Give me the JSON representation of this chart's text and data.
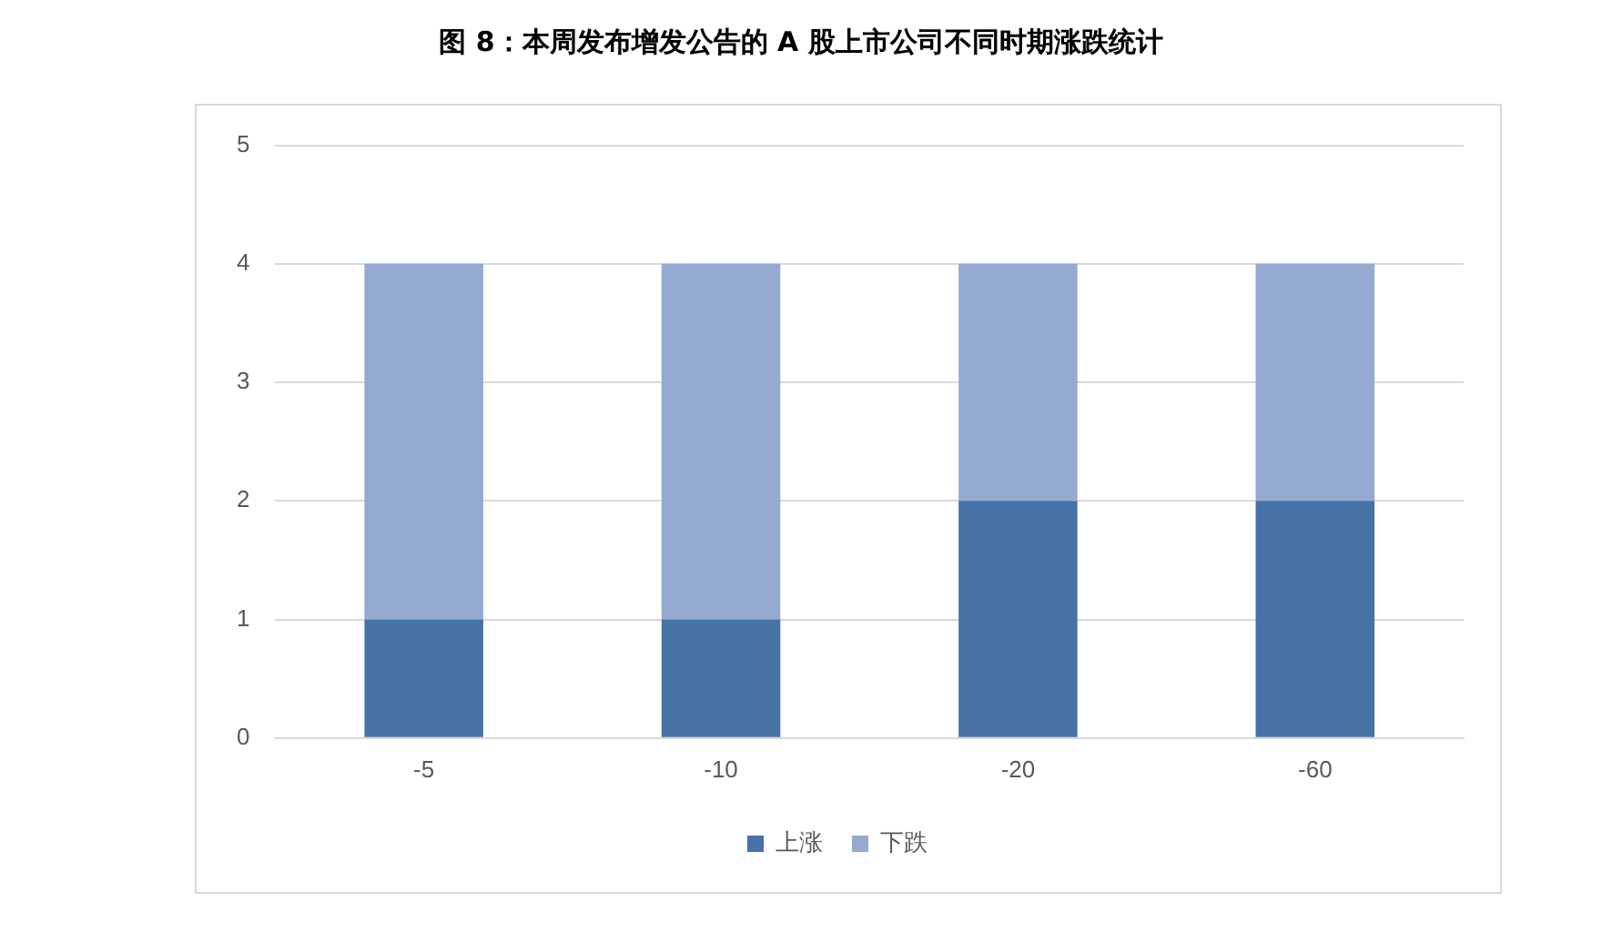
{
  "chart_data": {
    "type": "bar",
    "title": "图 8：本周发布增发公告的 A 股上市公司不同时期涨跌统计",
    "categories": [
      "-5",
      "-10",
      "-20",
      "-60"
    ],
    "stacked": true,
    "series": [
      {
        "name": "上涨",
        "color": "#4672a6",
        "values": [
          1,
          1,
          2,
          2
        ]
      },
      {
        "name": "下跌",
        "color": "#95aad1",
        "values": [
          3,
          3,
          2,
          2
        ]
      }
    ],
    "ylim": [
      0,
      5
    ],
    "yticks": [
      0,
      1,
      2,
      3,
      4,
      5
    ],
    "grid": "y",
    "legend": "bottom"
  }
}
